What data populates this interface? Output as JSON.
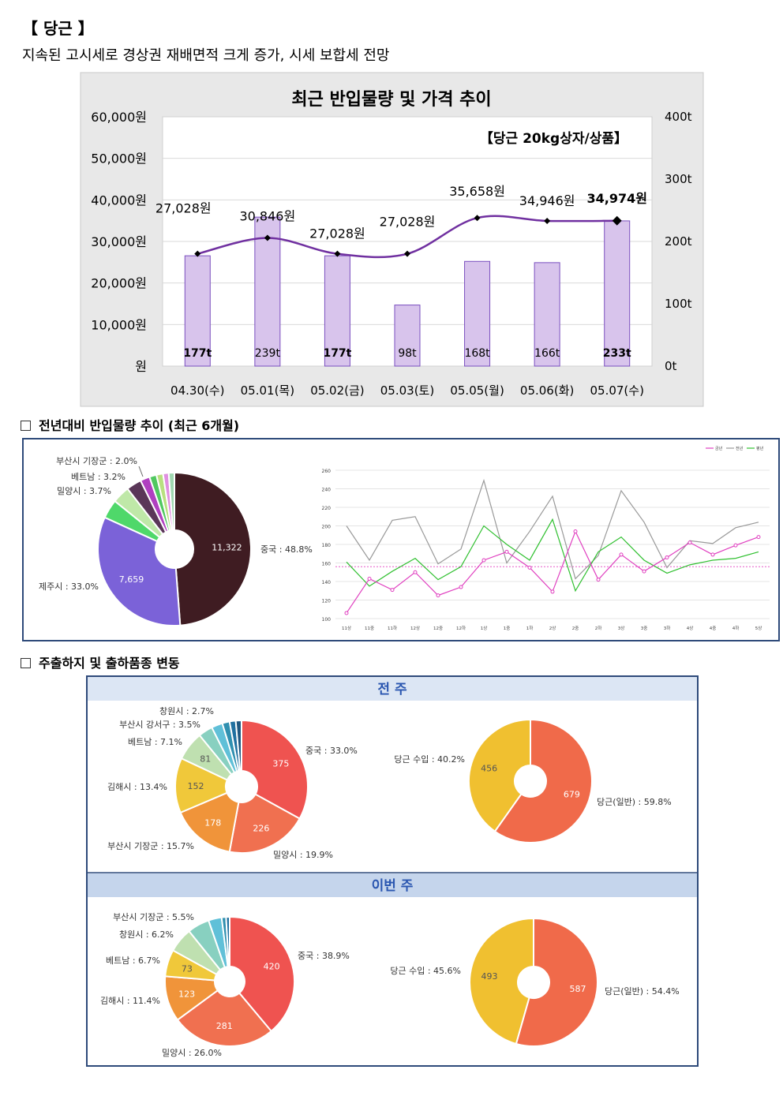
{
  "header": {
    "title": "【 당근 】",
    "subtitle": "지속된 고시세로 경상권 재배면적 크게 증가, 시세 보합세 전망"
  },
  "sections": {
    "s1": "전년대비 반입물량 추이 (최근 6개월)",
    "s2": "주출하지 및 출하품종 변동",
    "prev_week": "전 주",
    "this_week": "이번 주"
  },
  "chart_data": [
    {
      "id": "main",
      "type": "bar+line",
      "title": "최근 반입물량 및 가격 추이",
      "annotation": "【당근 20kg상자/상품】",
      "categories": [
        "04.30(수)",
        "05.01(목)",
        "05.02(금)",
        "05.03(토)",
        "05.05(월)",
        "05.06(화)",
        "05.07(수)"
      ],
      "volume": [
        177,
        239,
        177,
        98,
        168,
        166,
        233
      ],
      "volume_labels": [
        "177t",
        "239t",
        "177t",
        "98t",
        "168t",
        "166t",
        "233t"
      ],
      "price": [
        27028,
        30846,
        27028,
        27028,
        35658,
        34946,
        34974
      ],
      "price_labels": [
        "27,028원",
        "30,846원",
        "27,028원",
        "27,028원",
        "35,658원",
        "34,946원",
        "34,974원"
      ],
      "y_left_ticks": [
        "60,000원",
        "50,000원",
        "40,000원",
        "30,000원",
        "20,000원",
        "10,000원",
        "원"
      ],
      "y_right_ticks": [
        "400t",
        "300t",
        "200t",
        "100t",
        "0t"
      ],
      "ylim_price": [
        0,
        60000
      ],
      "ylim_volume": [
        0,
        400
      ],
      "colors": {
        "bar": "#d8c4ec",
        "bar_border": "#7a4fbf",
        "line": "#7030a0",
        "marker": "#000000"
      }
    },
    {
      "id": "origin_6m",
      "type": "pie",
      "slices": [
        {
          "label": "중국 : 48.8%",
          "value": 48.8,
          "inner": "11,322",
          "color": "#3f1c22"
        },
        {
          "label": "제주시 : 33.0%",
          "value": 33.0,
          "inner": "7,659",
          "color": "#7b62d8"
        },
        {
          "label": "",
          "value": 4.0,
          "inner": "",
          "color": "#4fd86a"
        },
        {
          "label": "밀양시 : 3.7%",
          "value": 3.7,
          "inner": "",
          "color": "#bfe8a8"
        },
        {
          "label": "베트남 : 3.2%",
          "value": 3.2,
          "inner": "",
          "color": "#5a3658"
        },
        {
          "label": "부산시 기장군 : 2.0%",
          "value": 2.0,
          "inner": "",
          "color": "#b040c0"
        },
        {
          "label": "",
          "value": 1.5,
          "inner": "",
          "color": "#50c860"
        },
        {
          "label": "",
          "value": 1.4,
          "inner": "",
          "color": "#b8e080"
        },
        {
          "label": "",
          "value": 1.2,
          "inner": "",
          "color": "#e090e0"
        },
        {
          "label": "",
          "value": 1.2,
          "inner": "",
          "color": "#a0d8b0"
        }
      ]
    },
    {
      "id": "yoy_line",
      "type": "line",
      "legend": [
        "금년",
        "전년",
        "평년"
      ],
      "colors": [
        "#e040c0",
        "#999999",
        "#30c030"
      ],
      "categories": [
        "11상",
        "11중",
        "11하",
        "12상",
        "12중",
        "12하",
        "1상",
        "1중",
        "1하",
        "2상",
        "2중",
        "2하",
        "3상",
        "3중",
        "3하",
        "4상",
        "4중",
        "4하",
        "5상"
      ],
      "yticks": [
        "260",
        "240",
        "220",
        "200",
        "180",
        "160",
        "140",
        "120",
        "100"
      ],
      "ylim": [
        100,
        260
      ],
      "series": [
        {
          "name": "금년",
          "values": [
            106,
            143,
            131,
            150,
            125,
            134,
            163,
            172,
            155,
            129,
            194,
            142,
            169,
            151,
            166,
            182,
            169,
            179,
            188
          ]
        },
        {
          "name": "전년",
          "values": [
            200,
            163,
            206,
            210,
            159,
            175,
            249,
            160,
            194,
            232,
            143,
            168,
            238,
            204,
            155,
            184,
            181,
            198,
            204
          ]
        },
        {
          "name": "평년",
          "values": [
            161,
            135,
            151,
            165,
            142,
            156,
            200,
            180,
            163,
            207,
            130,
            172,
            188,
            163,
            149,
            158,
            163,
            165,
            172
          ]
        }
      ],
      "reference": 156
    },
    {
      "id": "prev_origin",
      "type": "pie",
      "slices": [
        {
          "label": "중국 : 33.0%",
          "value": 33.0,
          "inner": "375",
          "color": "#ef5350"
        },
        {
          "label": "밀양시 : 19.9%",
          "value": 19.9,
          "inner": "226",
          "color": "#f07050"
        },
        {
          "label": "부산시 기장군 : 15.7%",
          "value": 15.7,
          "inner": "178",
          "color": "#f0943a"
        },
        {
          "label": "김해시 : 13.4%",
          "value": 13.4,
          "inner": "152",
          "color": "#f0c83a"
        },
        {
          "label": "베트남 : 7.1%",
          "value": 7.1,
          "inner": "81",
          "color": "#bfe0b0"
        },
        {
          "label": "부산시 강서구 : 3.5%",
          "value": 3.5,
          "inner": "",
          "color": "#88d0c0"
        },
        {
          "label": "창원시 : 2.7%",
          "value": 2.7,
          "inner": "",
          "color": "#60c0d8"
        },
        {
          "label": "",
          "value": 1.8,
          "inner": "",
          "color": "#3090b0"
        },
        {
          "label": "",
          "value": 1.5,
          "inner": "",
          "color": "#2070a0"
        },
        {
          "label": "",
          "value": 1.4,
          "inner": "",
          "color": "#205880"
        }
      ]
    },
    {
      "id": "prev_variety",
      "type": "pie",
      "slices": [
        {
          "label": "당근(일반) : 59.8%",
          "value": 59.8,
          "inner": "679",
          "color": "#f06a4a"
        },
        {
          "label": "당근 수입 : 40.2%",
          "value": 40.2,
          "inner": "456",
          "color": "#f0c030"
        }
      ]
    },
    {
      "id": "this_origin",
      "type": "pie",
      "slices": [
        {
          "label": "중국 : 38.9%",
          "value": 38.9,
          "inner": "420",
          "color": "#ef5350"
        },
        {
          "label": "밀양시 : 26.0%",
          "value": 26.0,
          "inner": "281",
          "color": "#f07050"
        },
        {
          "label": "김해시 : 11.4%",
          "value": 11.4,
          "inner": "123",
          "color": "#f0943a"
        },
        {
          "label": "베트남 : 6.7%",
          "value": 6.7,
          "inner": "73",
          "color": "#f0c83a"
        },
        {
          "label": "창원시 : 6.2%",
          "value": 6.2,
          "inner": "",
          "color": "#bfe0b0"
        },
        {
          "label": "부산시 기장군 : 5.5%",
          "value": 5.5,
          "inner": "",
          "color": "#88d0c0"
        },
        {
          "label": "",
          "value": 3.3,
          "inner": "",
          "color": "#60c0d8"
        },
        {
          "label": "",
          "value": 1.1,
          "inner": "",
          "color": "#3090b0"
        },
        {
          "label": "",
          "value": 0.9,
          "inner": "",
          "color": "#2070a0"
        }
      ]
    },
    {
      "id": "this_variety",
      "type": "pie",
      "slices": [
        {
          "label": "당근(일반) : 54.4%",
          "value": 54.4,
          "inner": "587",
          "color": "#f06a4a"
        },
        {
          "label": "당근 수입 : 45.6%",
          "value": 45.6,
          "inner": "493",
          "color": "#f0c030"
        }
      ]
    }
  ]
}
